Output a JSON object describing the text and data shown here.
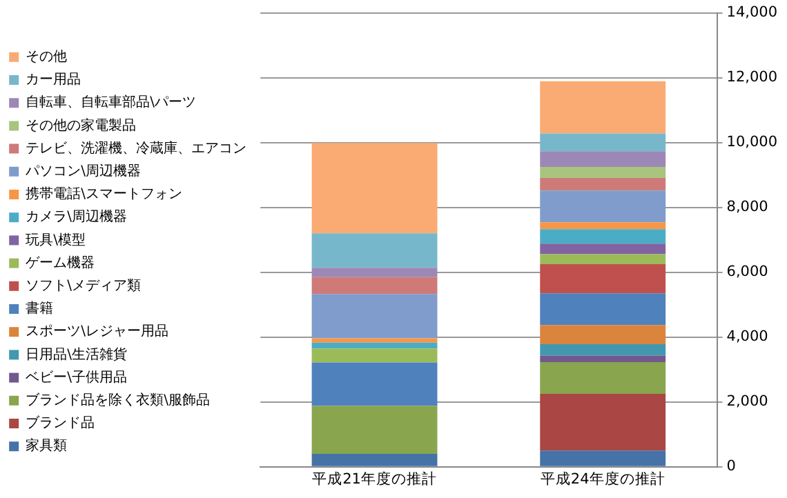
{
  "chart_data": {
    "type": "bar",
    "stacked": true,
    "categories": [
      "平成21年度の推計",
      "平成24年度の推計"
    ],
    "series": [
      {
        "name": "家具類",
        "color": "#4572a7",
        "values": [
          400,
          500
        ]
      },
      {
        "name": "ブランド品",
        "color": "#aa4643",
        "values": [
          null,
          1750
        ]
      },
      {
        "name": "ブランド品を除く衣類\\服飾品",
        "color": "#89a54e",
        "values": [
          1480,
          980
        ]
      },
      {
        "name": "ベビー\\子供用品",
        "color": "#71588f",
        "values": [
          null,
          200
        ]
      },
      {
        "name": "日用品\\生活雑貨",
        "color": "#4198af",
        "values": [
          null,
          350
        ]
      },
      {
        "name": "スポーツ\\レジャー用品",
        "color": "#db843d",
        "values": [
          null,
          590
        ]
      },
      {
        "name": "書籍",
        "color": "#4f81bd",
        "values": [
          1340,
          980
        ]
      },
      {
        "name": "ソフト\\メディア類",
        "color": "#c0504d",
        "values": [
          null,
          900
        ]
      },
      {
        "name": "ゲーム機器",
        "color": "#9bbb59",
        "values": [
          430,
          310
        ]
      },
      {
        "name": "玩具\\模型",
        "color": "#8064a2",
        "values": [
          null,
          320
        ]
      },
      {
        "name": "カメラ\\周辺機器",
        "color": "#4bacc6",
        "values": [
          180,
          450
        ]
      },
      {
        "name": "携帯電話\\スマートフォン",
        "color": "#f79646",
        "values": [
          130,
          210
        ]
      },
      {
        "name": "パソコン\\周辺機器",
        "color": "#7f9ccc",
        "values": [
          1370,
          980
        ]
      },
      {
        "name": "テレビ、洗濯機、冷蔵庫、エアコン",
        "color": "#cd7a78",
        "values": [
          520,
          390
        ]
      },
      {
        "name": "その他の家電製品",
        "color": "#a9c47f",
        "values": [
          null,
          340
        ]
      },
      {
        "name": "自転車、自転車部品\\パーツ",
        "color": "#9c88b6",
        "values": [
          290,
          480
        ]
      },
      {
        "name": "カー用品",
        "color": "#77b7cc",
        "values": [
          1060,
          550
        ]
      },
      {
        "name": "その他",
        "color": "#f9ab73",
        "values": [
          2790,
          1610
        ]
      }
    ],
    "ylim": [
      0,
      14000
    ],
    "yticks": [
      0,
      {
        "value": 2000,
        "label": "2,000"
      },
      {
        "value": 4000,
        "label": "4,000"
      },
      {
        "value": 6000,
        "label": "6,000"
      },
      {
        "value": 8000,
        "label": "8,000"
      },
      {
        "value": 10000,
        "label": "10,000"
      },
      {
        "value": 12000,
        "label": "12,000"
      },
      {
        "value": 14000,
        "label": "14,000"
      }
    ],
    "grid": "y",
    "legend": "left"
  }
}
